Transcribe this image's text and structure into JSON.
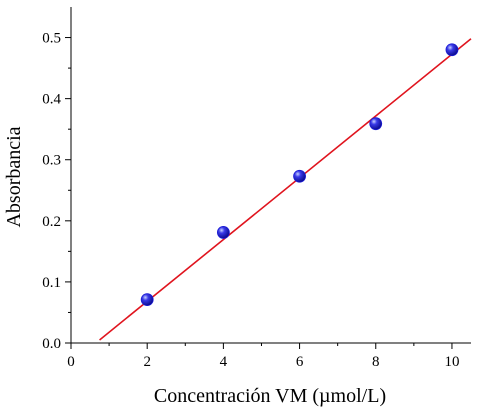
{
  "chart_data": {
    "type": "scatter",
    "xlabel": "Concentración VM (µmol/L)",
    "ylabel": "Absorbancia",
    "xlim": [
      0,
      10.5
    ],
    "ylim": [
      0,
      0.55
    ],
    "xticks": [
      "0",
      "2",
      "4",
      "6",
      "8",
      "10"
    ],
    "yticks": [
      "0.0",
      "0.1",
      "0.2",
      "0.3",
      "0.4",
      "0.5"
    ],
    "grid": false,
    "series": [
      {
        "type": "scatter",
        "x": [
          2,
          4,
          6,
          8,
          10
        ],
        "y": [
          0.071,
          0.181,
          0.273,
          0.359,
          0.48
        ],
        "color": "#1a1ad6"
      }
    ],
    "fit_line": {
      "x": [
        0.75,
        10.5
      ],
      "y": [
        0.005,
        0.498
      ],
      "color": "#e0141e"
    }
  }
}
